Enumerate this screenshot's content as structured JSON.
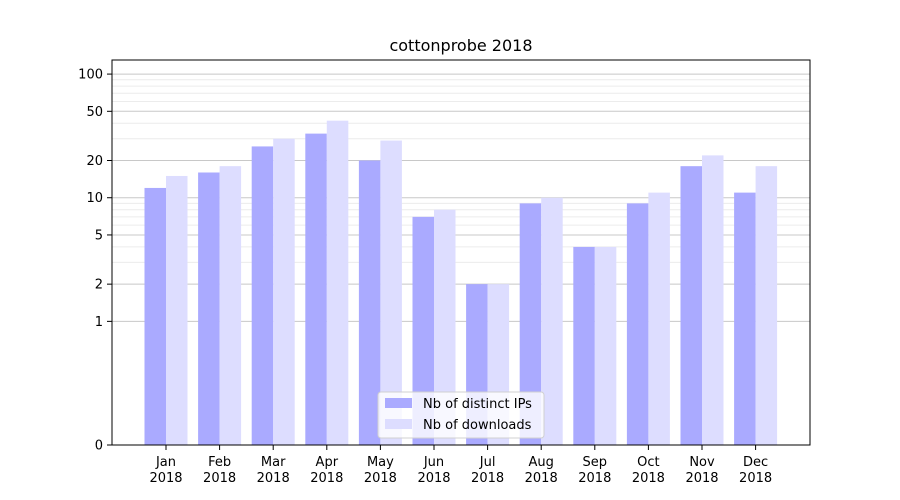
{
  "chart_data": {
    "type": "bar",
    "title": "cottonprobe 2018",
    "xlabel": "",
    "ylabel": "",
    "y_scale": "symlog",
    "ylim": [
      0,
      130
    ],
    "yticks": [
      0,
      1,
      2,
      5,
      10,
      20,
      50,
      100
    ],
    "grid": "horizontal",
    "legend_position": "lower-center",
    "categories": [
      [
        "Jan",
        "2018"
      ],
      [
        "Feb",
        "2018"
      ],
      [
        "Mar",
        "2018"
      ],
      [
        "Apr",
        "2018"
      ],
      [
        "May",
        "2018"
      ],
      [
        "Jun",
        "2018"
      ],
      [
        "Jul",
        "2018"
      ],
      [
        "Aug",
        "2018"
      ],
      [
        "Sep",
        "2018"
      ],
      [
        "Oct",
        "2018"
      ],
      [
        "Nov",
        "2018"
      ],
      [
        "Dec",
        "2018"
      ]
    ],
    "series": [
      {
        "name": "Nb of distinct IPs",
        "color": "#aaaaff",
        "values": [
          12,
          16,
          26,
          33,
          20,
          7,
          2,
          9,
          4,
          9,
          18,
          11
        ]
      },
      {
        "name": "Nb of downloads",
        "color": "#ddddff",
        "values": [
          15,
          18,
          30,
          42,
          29,
          8,
          2,
          10,
          4,
          11,
          22,
          18
        ]
      }
    ]
  }
}
